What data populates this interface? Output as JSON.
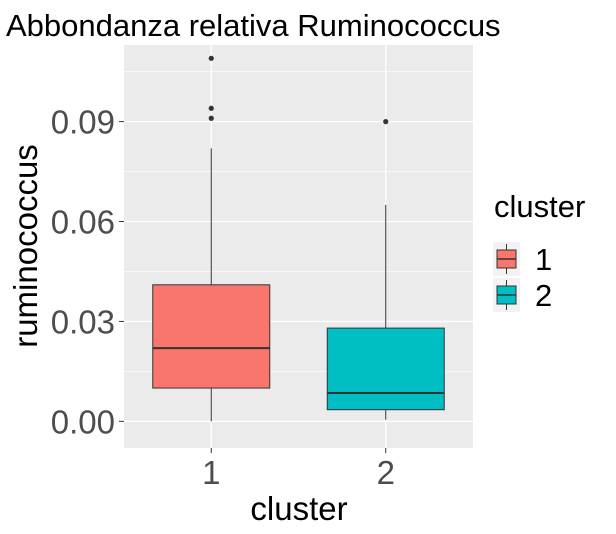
{
  "chart_data": {
    "type": "boxplot",
    "title": "Abbondanza relativa Ruminococcus",
    "xlabel": "cluster",
    "ylabel": "ruminococcus",
    "ylim": [
      -0.008,
      0.113
    ],
    "yticks": [
      0.0,
      0.03,
      0.06,
      0.09
    ],
    "ytick_labels": [
      "0.00",
      "0.03",
      "0.06",
      "0.09"
    ],
    "categories": [
      "1",
      "2"
    ],
    "grid": true,
    "legend": {
      "title": "cluster",
      "position": "right",
      "entries": [
        {
          "label": "1",
          "color": "#F8766D"
        },
        {
          "label": "2",
          "color": "#00BFC4"
        }
      ]
    },
    "boxes": [
      {
        "category": "1",
        "color": "#F8766D",
        "whisker_low": 0.0,
        "q1": 0.01,
        "median": 0.022,
        "q3": 0.041,
        "whisker_high": 0.082,
        "outliers": [
          0.091,
          0.094,
          0.109
        ]
      },
      {
        "category": "2",
        "color": "#00BFC4",
        "whisker_low": 0.0005,
        "q1": 0.0035,
        "median": 0.0085,
        "q3": 0.028,
        "whisker_high": 0.065,
        "outliers": [
          0.09
        ]
      }
    ]
  }
}
